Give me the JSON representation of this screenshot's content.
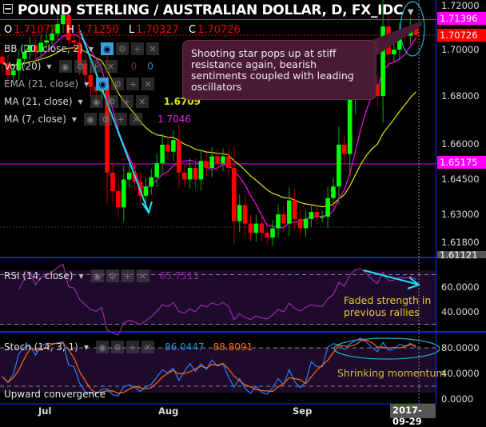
{
  "header": {
    "title": "POUND STERLING / AUSTRALIAN DOLLAR, D, FX_IDC",
    "ohlc": {
      "o_label": "O",
      "o": "1.71077",
      "h_label": "H",
      "h": "1.71250",
      "l_label": "L",
      "l": "1.70327",
      "c_label": "C",
      "c": "1.70726"
    }
  },
  "indicators": [
    {
      "label": "BB (20, close, 2)"
    },
    {
      "label": "Vol (20)",
      "values": [
        "0",
        "0"
      ]
    },
    {
      "label": "EMA (21, close)"
    },
    {
      "label": "MA (21, close)",
      "value": "1.6709"
    },
    {
      "label": "MA (7, close)",
      "value": "1.7046"
    }
  ],
  "annotation": "Shooting star pops up at stiff resistance again, bearish sentiments coupled with leading oscillators",
  "price_axis": {
    "ticks": [
      "1.72000",
      "1.70000",
      "1.68000",
      "1.66000",
      "1.64500",
      "1.63000",
      "1.61800"
    ],
    "tags": [
      {
        "text": "1.71396",
        "color": "#ff00ff"
      },
      {
        "text": "1.70726",
        "color": "#ff0000"
      },
      {
        "text": "1.65175",
        "color": "#ff00ff"
      },
      {
        "text": "1.61121",
        "color": "#555555"
      }
    ]
  },
  "rsi": {
    "label": "RSI (14, close)",
    "value": "65.7511",
    "ticks": [
      "60.0000",
      "40.0000"
    ],
    "note": "Faded strength in previous rallies"
  },
  "stoch": {
    "label": "Stoch (14, 3, 1)",
    "k": "86.0447",
    "d": "88.8091",
    "ticks": [
      "80.0000",
      "40.0000",
      "0.0000"
    ],
    "note": "Shrinking momentum",
    "note2": "Upward convergence"
  },
  "time_axis": {
    "labels": [
      "Jul",
      "Aug",
      "Sep"
    ],
    "cursor": "2017-09-29"
  },
  "colors": {
    "up": "#00ff00",
    "down": "#ff0000",
    "ma7": "#ff00ff",
    "ema21": "#e8e000",
    "rsi": "#9a2ab0",
    "stoch_k": "#2a7fff",
    "stoch_d": "#ff6a10",
    "annot": "#20e0f0"
  },
  "chart_data": {
    "type": "candlestick",
    "closes": [
      1.695,
      1.69,
      1.692,
      1.697,
      1.7,
      1.703,
      1.7,
      1.704,
      1.705,
      1.708,
      1.712,
      1.716,
      1.705,
      1.704,
      1.695,
      1.69,
      1.685,
      1.683,
      1.686,
      1.648,
      1.64,
      1.633,
      1.645,
      1.648,
      1.644,
      1.638,
      1.642,
      1.646,
      1.652,
      1.66,
      1.657,
      1.662,
      1.648,
      1.645,
      1.65,
      1.645,
      1.653,
      1.65,
      1.655,
      1.652,
      1.655,
      1.65,
      1.627,
      1.634,
      1.626,
      1.622,
      1.626,
      1.622,
      1.62,
      1.624,
      1.63,
      1.626,
      1.636,
      1.628,
      1.624,
      1.628,
      1.631,
      1.629,
      1.629,
      1.637,
      1.642,
      1.66,
      1.656,
      1.68,
      1.695,
      1.698,
      1.693,
      1.686,
      1.681,
      1.711,
      1.699,
      1.701,
      1.708,
      1.707,
      1.711,
      1.70726
    ],
    "first_open": 1.698,
    "last_high": 1.7125,
    "ylim": [
      1.608,
      1.722
    ]
  }
}
